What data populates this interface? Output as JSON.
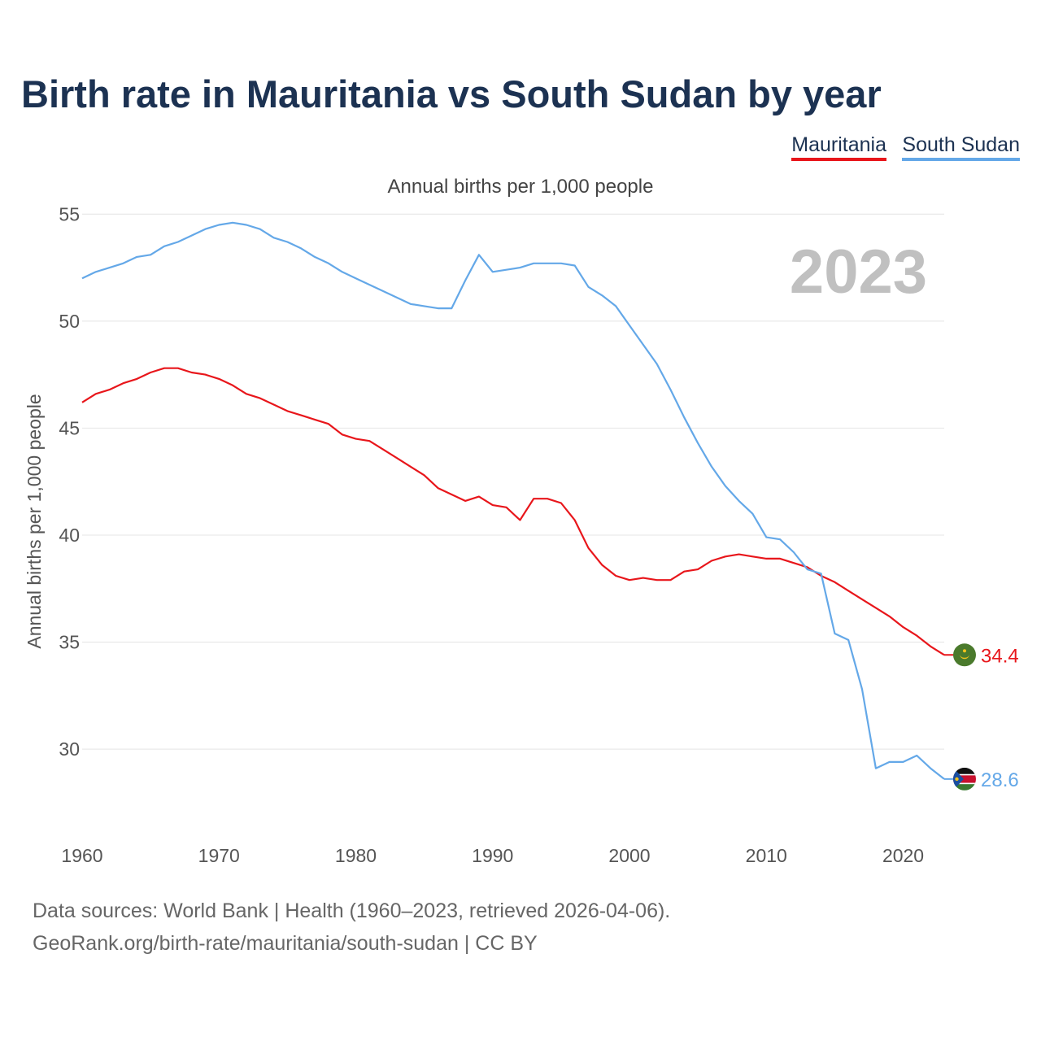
{
  "title": "Birth rate in Mauritania vs South Sudan by year",
  "legend": {
    "mauritania": "Mauritania",
    "south_sudan": "South Sudan"
  },
  "subtitle": "Annual births per 1,000 people",
  "footer": {
    "sources": "Data sources: World Bank | Health (1960–2023, retrieved 2026-04-06).",
    "url": "GeoRank.org/birth-rate/mauritania/south-sudan | CC BY"
  },
  "colors": {
    "mauritania": "#e8161b",
    "south_sudan": "#64a8e8",
    "title": "#1c3252",
    "year_watermark": "#c0c0c0"
  },
  "chart_data": {
    "type": "line",
    "title": "Birth rate in Mauritania vs South Sudan by year",
    "ylabel": "Annual births per 1,000 people",
    "xlabel": "",
    "xlim": [
      1960,
      2023
    ],
    "ylim": [
      27,
      56
    ],
    "yticks": [
      30,
      35,
      40,
      45,
      50,
      55
    ],
    "xticks": [
      1960,
      1970,
      1980,
      1990,
      2000,
      2010,
      2020
    ],
    "year_label": "2023",
    "grid": true,
    "legend_position": "top-right",
    "x": [
      1960,
      1961,
      1962,
      1963,
      1964,
      1965,
      1966,
      1967,
      1968,
      1969,
      1970,
      1971,
      1972,
      1973,
      1974,
      1975,
      1976,
      1977,
      1978,
      1979,
      1980,
      1981,
      1982,
      1983,
      1984,
      1985,
      1986,
      1987,
      1988,
      1989,
      1990,
      1991,
      1992,
      1993,
      1994,
      1995,
      1996,
      1997,
      1998,
      1999,
      2000,
      2001,
      2002,
      2003,
      2004,
      2005,
      2006,
      2007,
      2008,
      2009,
      2010,
      2011,
      2012,
      2013,
      2014,
      2015,
      2016,
      2017,
      2018,
      2019,
      2020,
      2021,
      2022,
      2023
    ],
    "series": [
      {
        "name": "Mauritania",
        "color": "#e8161b",
        "end_label": "34.4",
        "values": [
          46.2,
          46.6,
          46.8,
          47.1,
          47.3,
          47.6,
          47.8,
          47.8,
          47.6,
          47.5,
          47.3,
          47.0,
          46.6,
          46.4,
          46.1,
          45.8,
          45.6,
          45.4,
          45.2,
          44.7,
          44.5,
          44.4,
          44.0,
          43.6,
          43.2,
          42.8,
          42.2,
          41.9,
          41.6,
          41.8,
          41.4,
          41.3,
          40.7,
          41.7,
          41.7,
          41.5,
          40.7,
          39.4,
          38.6,
          38.1,
          37.9,
          38.0,
          37.9,
          37.9,
          38.3,
          38.4,
          38.8,
          39.0,
          39.1,
          39.0,
          38.9,
          38.9,
          38.7,
          38.5,
          38.1,
          37.8,
          37.4,
          37.0,
          36.6,
          36.2,
          35.7,
          35.3,
          34.8,
          34.4
        ]
      },
      {
        "name": "South Sudan",
        "color": "#64a8e8",
        "end_label": "28.6",
        "values": [
          52.0,
          52.3,
          52.5,
          52.7,
          53.0,
          53.1,
          53.5,
          53.7,
          54.0,
          54.3,
          54.5,
          54.6,
          54.5,
          54.3,
          53.9,
          53.7,
          53.4,
          53.0,
          52.7,
          52.3,
          52.0,
          51.7,
          51.4,
          51.1,
          50.8,
          50.7,
          50.6,
          50.6,
          51.9,
          53.1,
          52.3,
          52.4,
          52.5,
          52.7,
          52.7,
          52.7,
          52.6,
          51.6,
          51.2,
          50.7,
          49.8,
          48.9,
          48.0,
          46.8,
          45.5,
          44.3,
          43.2,
          42.3,
          41.6,
          41.0,
          39.9,
          39.8,
          39.2,
          38.4,
          38.2,
          35.4,
          35.1,
          32.8,
          29.1,
          29.4,
          29.4,
          29.7,
          29.1,
          28.6
        ]
      }
    ]
  }
}
